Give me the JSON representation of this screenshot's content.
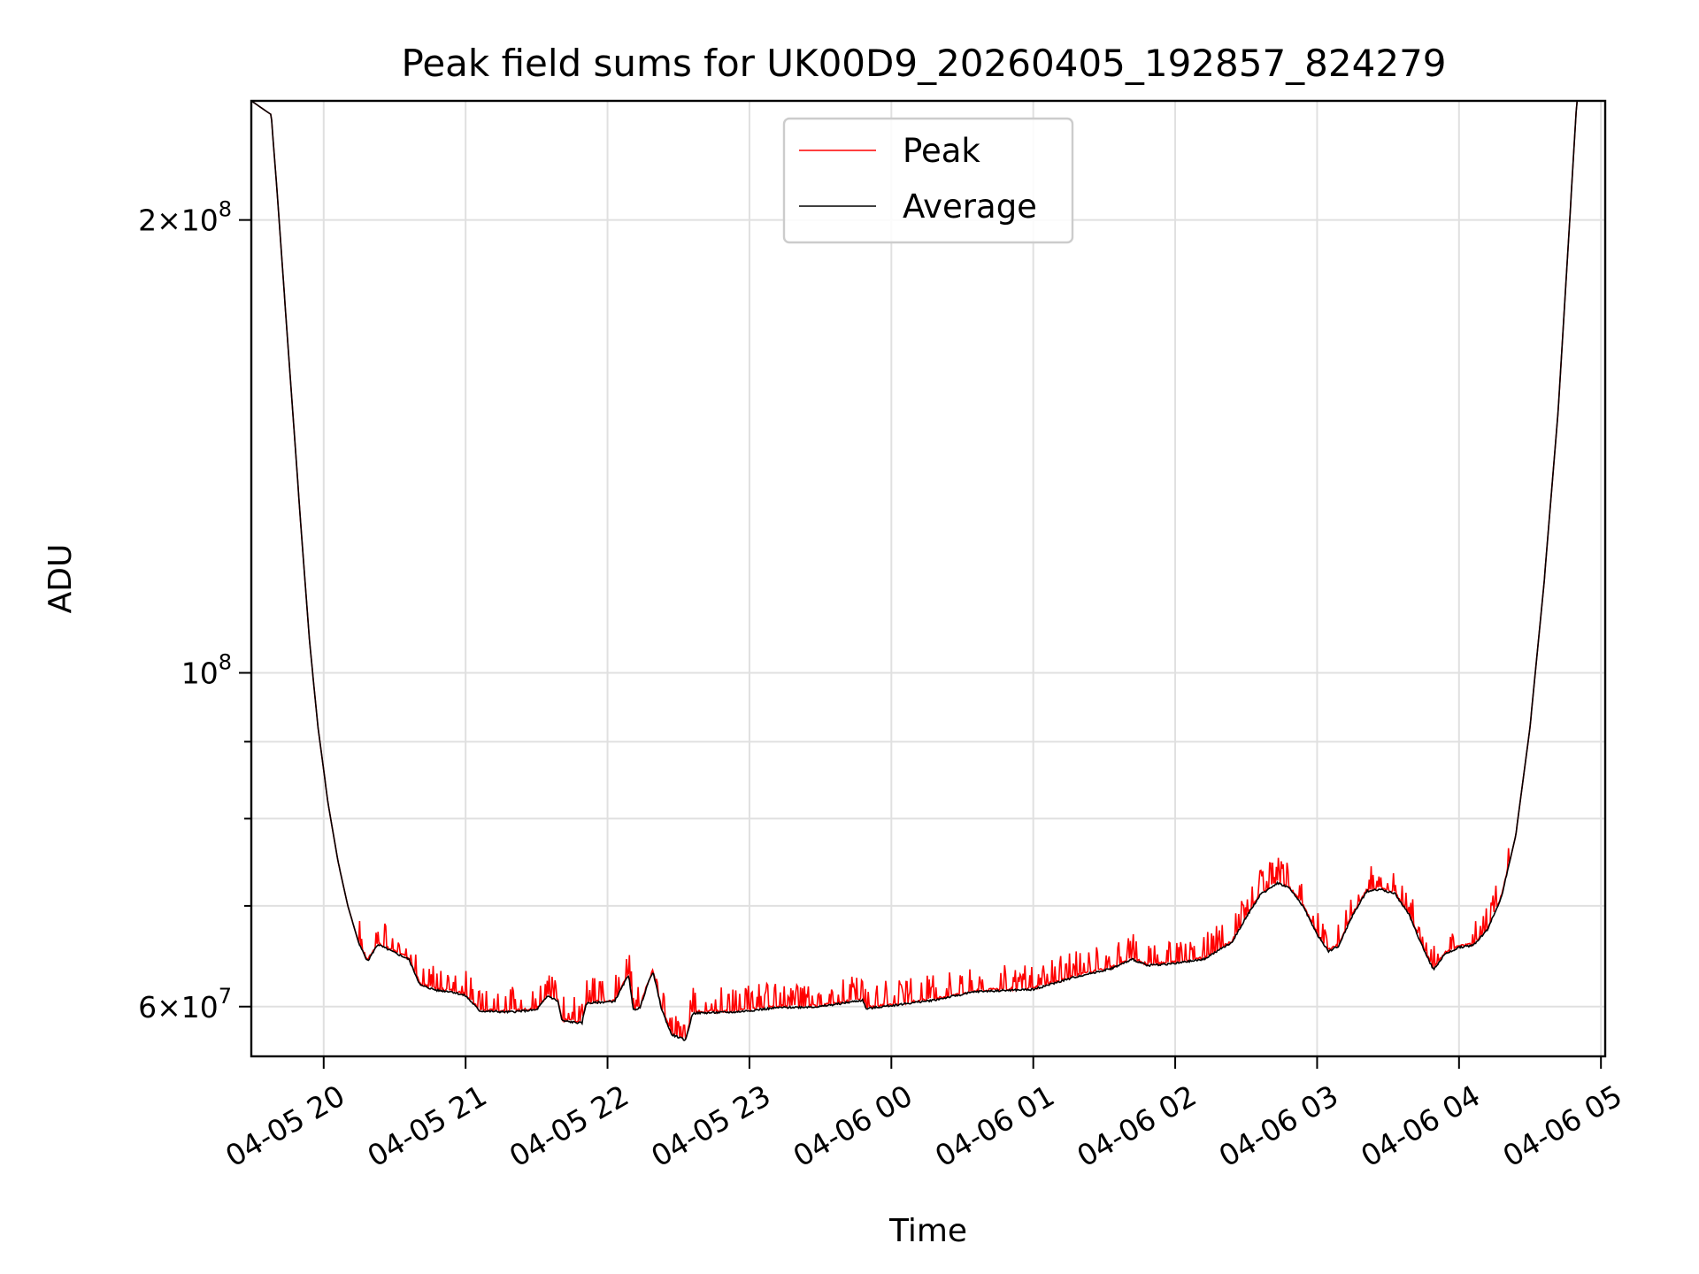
{
  "chart_data": {
    "type": "line",
    "title": "Peak field sums for UK00D9_20260405_192857_824279",
    "xlabel": "Time",
    "ylabel": "ADU",
    "yscale": "log",
    "ylim": [
      55600000,
      240000000
    ],
    "xlim_hours": [
      19.49,
      29.03
    ],
    "grid": true,
    "legend_position": "top-center",
    "x_ticks": [
      {
        "hour": 20,
        "label": "04-05 20"
      },
      {
        "hour": 21,
        "label": "04-05 21"
      },
      {
        "hour": 22,
        "label": "04-05 22"
      },
      {
        "hour": 23,
        "label": "04-05 23"
      },
      {
        "hour": 24,
        "label": "04-06 00"
      },
      {
        "hour": 25,
        "label": "04-06 01"
      },
      {
        "hour": 26,
        "label": "04-06 02"
      },
      {
        "hour": 27,
        "label": "04-06 03"
      },
      {
        "hour": 28,
        "label": "04-06 04"
      },
      {
        "hour": 29,
        "label": "04-06 05"
      }
    ],
    "y_major_ticks": [
      {
        "value": 60000000,
        "mant": "6",
        "exp": "7"
      },
      {
        "value": 100000000,
        "mant": "",
        "exp": "8"
      },
      {
        "value": 200000000,
        "mant": "2",
        "exp": "8"
      }
    ],
    "y_minor_ticks": [
      70000000,
      80000000,
      90000000
    ],
    "series": [
      {
        "name": "Average",
        "color": "#000000",
        "points": [
          [
            19.49,
            240000000
          ],
          [
            19.63,
            235000000
          ],
          [
            19.67,
            210000000
          ],
          [
            19.72,
            180000000
          ],
          [
            19.78,
            150000000
          ],
          [
            19.84,
            125000000
          ],
          [
            19.9,
            105000000
          ],
          [
            19.96,
            92000000
          ],
          [
            20.03,
            82000000
          ],
          [
            20.1,
            75000000
          ],
          [
            20.17,
            70000000
          ],
          [
            20.25,
            66000000
          ],
          [
            20.31,
            64300000
          ],
          [
            20.38,
            66000000
          ],
          [
            20.48,
            65300000
          ],
          [
            20.6,
            64500000
          ],
          [
            20.68,
            62000000
          ],
          [
            20.8,
            61500000
          ],
          [
            20.9,
            61400000
          ],
          [
            21.0,
            61000000
          ],
          [
            21.1,
            59600000
          ],
          [
            21.3,
            59500000
          ],
          [
            21.5,
            59700000
          ],
          [
            21.58,
            61000000
          ],
          [
            21.65,
            60500000
          ],
          [
            21.68,
            58700000
          ],
          [
            21.82,
            58500000
          ],
          [
            21.85,
            60300000
          ],
          [
            21.95,
            60400000
          ],
          [
            22.05,
            60500000
          ],
          [
            22.15,
            63000000
          ],
          [
            22.18,
            59700000
          ],
          [
            22.23,
            59900000
          ],
          [
            22.28,
            62000000
          ],
          [
            22.32,
            63300000
          ],
          [
            22.38,
            59800000
          ],
          [
            22.45,
            57500000
          ],
          [
            22.55,
            57000000
          ],
          [
            22.6,
            59400000
          ],
          [
            22.9,
            59500000
          ],
          [
            23.2,
            59900000
          ],
          [
            23.5,
            60000000
          ],
          [
            23.8,
            60600000
          ],
          [
            23.82,
            59800000
          ],
          [
            24.0,
            60100000
          ],
          [
            24.3,
            60600000
          ],
          [
            24.6,
            61400000
          ],
          [
            25.0,
            61600000
          ],
          [
            25.3,
            62800000
          ],
          [
            25.55,
            63600000
          ],
          [
            25.7,
            64500000
          ],
          [
            25.8,
            63900000
          ],
          [
            26.0,
            64100000
          ],
          [
            26.2,
            64500000
          ],
          [
            26.4,
            66200000
          ],
          [
            26.5,
            68800000
          ],
          [
            26.6,
            71200000
          ],
          [
            26.72,
            72500000
          ],
          [
            26.8,
            72000000
          ],
          [
            26.9,
            70000000
          ],
          [
            27.0,
            67000000
          ],
          [
            27.08,
            65300000
          ],
          [
            27.15,
            65800000
          ],
          [
            27.25,
            69000000
          ],
          [
            27.35,
            71600000
          ],
          [
            27.45,
            71800000
          ],
          [
            27.55,
            71300000
          ],
          [
            27.65,
            69000000
          ],
          [
            27.75,
            65500000
          ],
          [
            27.82,
            63500000
          ],
          [
            27.9,
            65000000
          ],
          [
            28.0,
            65700000
          ],
          [
            28.1,
            65900000
          ],
          [
            28.2,
            67500000
          ],
          [
            28.3,
            71000000
          ],
          [
            28.4,
            78000000
          ],
          [
            28.5,
            92000000
          ],
          [
            28.6,
            115000000
          ],
          [
            28.7,
            150000000
          ],
          [
            28.78,
            200000000
          ],
          [
            28.83,
            240000000
          ],
          [
            29.03,
            240000000
          ]
        ]
      },
      {
        "name": "Peak",
        "color": "#ff0000",
        "points": []
      }
    ]
  }
}
